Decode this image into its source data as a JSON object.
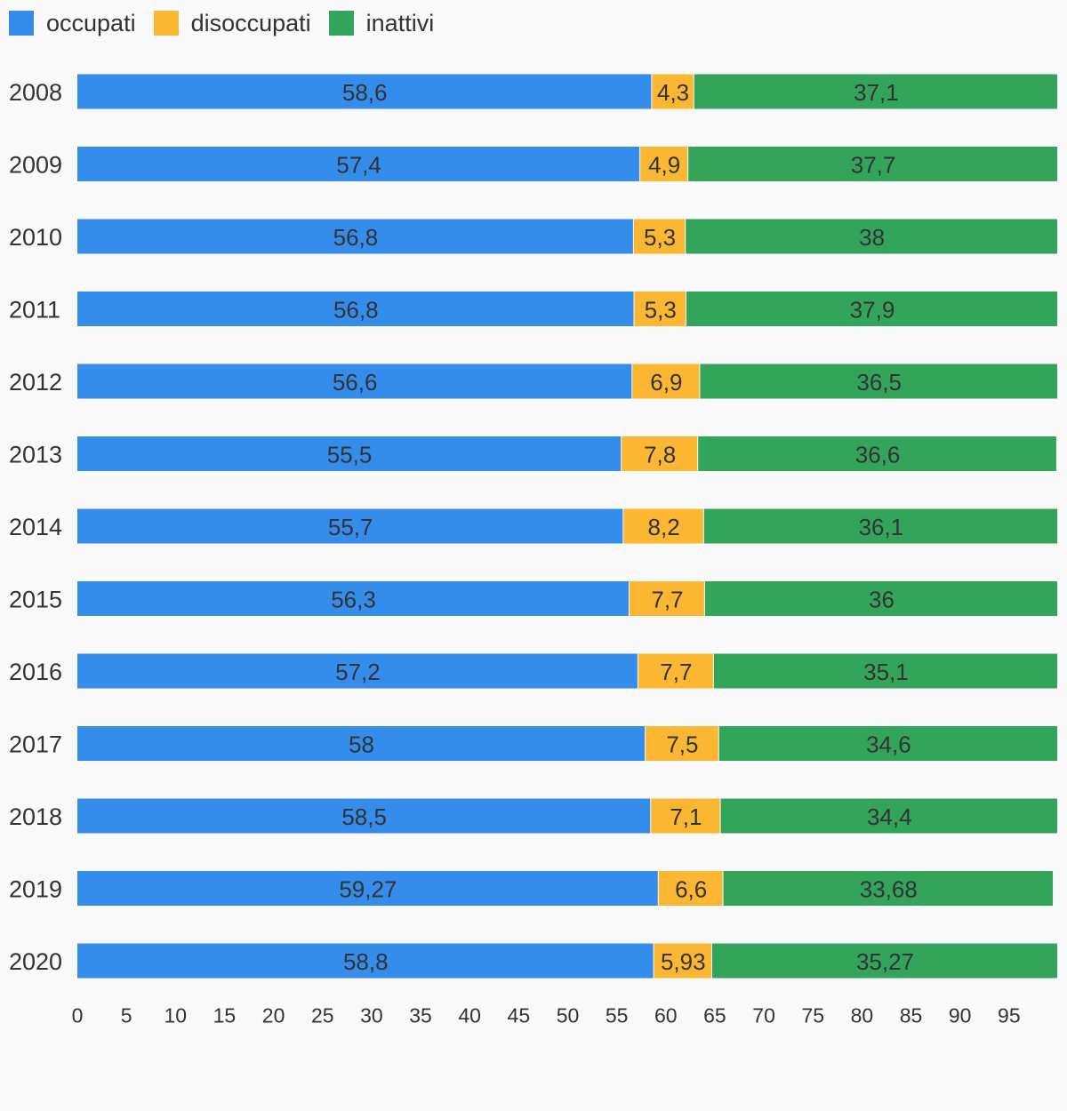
{
  "chart_data": {
    "type": "bar",
    "orientation": "horizontal",
    "stacked": true,
    "categories": [
      "2008",
      "2009",
      "2010",
      "2011",
      "2012",
      "2013",
      "2014",
      "2015",
      "2016",
      "2017",
      "2018",
      "2019",
      "2020"
    ],
    "series": [
      {
        "name": "occupati",
        "color": "#348ceb",
        "values": [
          58.6,
          57.4,
          56.8,
          56.8,
          56.6,
          55.5,
          55.7,
          56.3,
          57.2,
          58,
          58.5,
          59.27,
          58.8
        ],
        "labels": [
          "58,6",
          "57,4",
          "56,8",
          "56,8",
          "56,6",
          "55,5",
          "55,7",
          "56,3",
          "57,2",
          "58",
          "58,5",
          "59,27",
          "58,8"
        ]
      },
      {
        "name": "disoccupati",
        "color": "#fbb732",
        "values": [
          4.3,
          4.9,
          5.3,
          5.3,
          6.9,
          7.8,
          8.2,
          7.7,
          7.7,
          7.5,
          7.1,
          6.6,
          5.93
        ],
        "labels": [
          "4,3",
          "4,9",
          "5,3",
          "5,3",
          "6,9",
          "7,8",
          "8,2",
          "7,7",
          "7,7",
          "7,5",
          "7,1",
          "6,6",
          "5,93"
        ]
      },
      {
        "name": "inattivi",
        "color": "#33a55a",
        "values": [
          37.1,
          37.7,
          38,
          37.9,
          36.5,
          36.6,
          36.1,
          36,
          35.1,
          34.6,
          34.4,
          33.68,
          35.27
        ],
        "labels": [
          "37,1",
          "37,7",
          "38",
          "37,9",
          "36,5",
          "36,6",
          "36,1",
          "36",
          "35,1",
          "34,6",
          "34,4",
          "33,68",
          "35,27"
        ]
      }
    ],
    "x_ticks": [
      "0",
      "5",
      "10",
      "15",
      "20",
      "25",
      "30",
      "35",
      "40",
      "45",
      "50",
      "55",
      "60",
      "65",
      "70",
      "75",
      "80",
      "85",
      "90",
      "95"
    ],
    "xlim": [
      0,
      100
    ],
    "legend_position": "top-left",
    "grid": false,
    "title": "",
    "xlabel": "",
    "ylabel": ""
  }
}
